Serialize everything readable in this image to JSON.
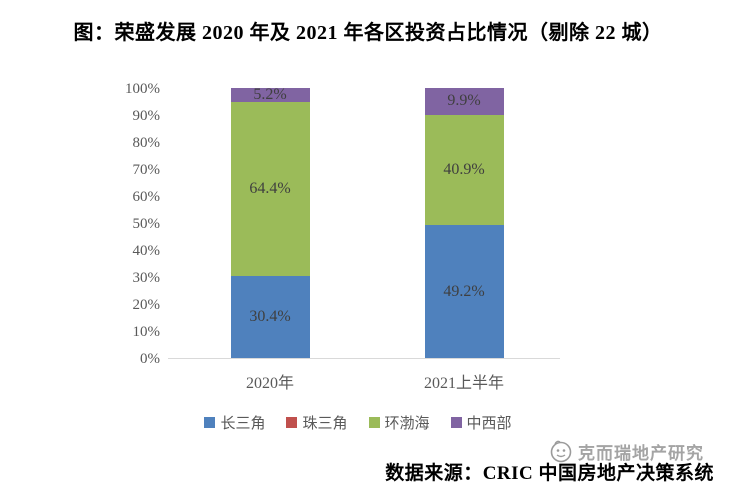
{
  "title": "图：荣盛发展 2020 年及 2021 年各区投资占比情况（剔除 22 城）",
  "source": "数据来源：CRIC 中国房地产决策系统",
  "watermark": {
    "logo_icon": "cric-circle-logo",
    "text": "克而瑞地产研究"
  },
  "chart_data": {
    "type": "bar",
    "stacked": true,
    "title": "图：荣盛发展 2020 年及 2021 年各区投资占比情况（剔除 22 城）",
    "categories": [
      "2020年",
      "2021上半年"
    ],
    "series": [
      {
        "name": "长三角",
        "color": "#4F81BD",
        "values": [
          30.4,
          49.2
        ]
      },
      {
        "name": "珠三角",
        "color": "#C0504D",
        "values": [
          0.0,
          0.0
        ]
      },
      {
        "name": "环渤海",
        "color": "#9BBB59",
        "values": [
          64.4,
          40.9
        ]
      },
      {
        "name": "中西部",
        "color": "#8064A2",
        "values": [
          5.2,
          9.9
        ]
      }
    ],
    "data_labels": [
      {
        "长三角": "30.4%",
        "环渤海": "64.4%",
        "中西部": "5.2%"
      },
      {
        "长三角": "49.2%",
        "环渤海": "40.9%",
        "中西部": "9.9%"
      }
    ],
    "xlabel": "",
    "ylabel": "",
    "ylim": [
      0,
      100
    ],
    "y_tick_step": 10,
    "y_tick_suffix": "%",
    "grid": false,
    "legend_position": "bottom",
    "axis_line_color": "#d9d9d9"
  }
}
